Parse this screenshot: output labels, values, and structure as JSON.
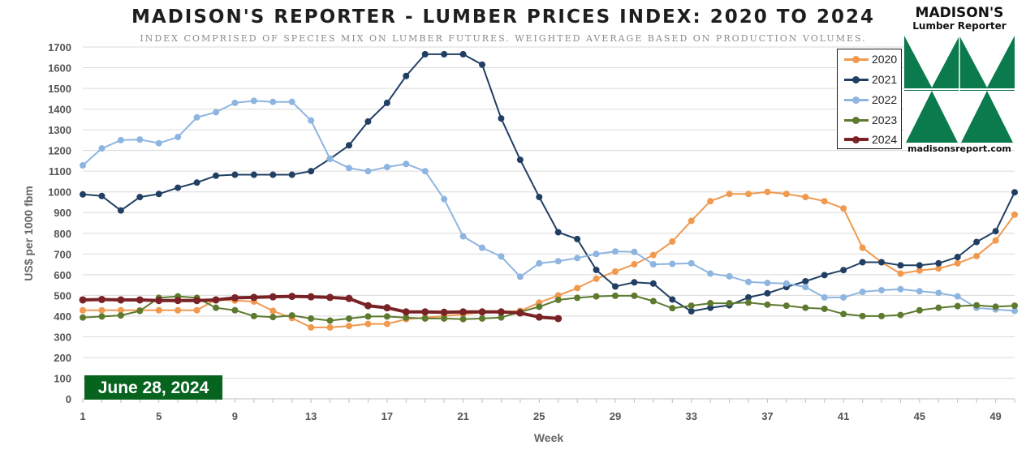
{
  "title": "MADISON'S REPORTER - LUMBER PRICES INDEX: 2020 TO 2024",
  "subtitle": "INDEX COMPRISED OF SPECIES MIX ON LUMBER FUTURES. WEIGHTED AVERAGE BASED ON PRODUCTION VOLUMES.",
  "logo": {
    "name": "MADISON'S",
    "subtitle": "Lumber Reporter",
    "url": "madisonsreport.com",
    "color": "#0b7a4c"
  },
  "date_badge": "June 28, 2024",
  "chart_data": {
    "type": "line",
    "title": "MADISON'S REPORTER - LUMBER PRICES INDEX: 2020 TO 2024",
    "xlabel": "Week",
    "ylabel": "US$ per 1000 fbm",
    "xlim": [
      1,
      50
    ],
    "ylim": [
      0,
      1700
    ],
    "x_ticks": [
      1,
      5,
      9,
      13,
      17,
      21,
      25,
      29,
      33,
      37,
      41,
      45,
      49
    ],
    "y_ticks": [
      0,
      100,
      200,
      300,
      400,
      500,
      600,
      700,
      800,
      900,
      1000,
      1100,
      1200,
      1300,
      1400,
      1500,
      1600,
      1700
    ],
    "grid": "horizontal",
    "legend_position": "top-right",
    "series": [
      {
        "name": "2020",
        "color": "#f0994f",
        "width": 2,
        "values": [
          428,
          428,
          428,
          428,
          428,
          428,
          428,
          480,
          475,
          470,
          425,
          390,
          345,
          345,
          352,
          362,
          362,
          385,
          392,
          400,
          408,
          418,
          420,
          425,
          465,
          500,
          535,
          580,
          615,
          650,
          695,
          760,
          860,
          955,
          990,
          990,
          1000,
          990,
          975,
          955,
          920,
          730,
          660,
          605,
          620,
          630,
          655,
          690,
          765,
          890
        ]
      },
      {
        "name": "2021",
        "color": "#203f63",
        "width": 2,
        "values": [
          988,
          980,
          910,
          975,
          990,
          1020,
          1045,
          1078,
          1083,
          1083,
          1083,
          1083,
          1100,
          1160,
          1225,
          1340,
          1430,
          1560,
          1665,
          1665,
          1665,
          1615,
          1355,
          1155,
          975,
          805,
          772,
          623,
          543,
          563,
          557,
          480,
          423,
          440,
          452,
          490,
          510,
          540,
          568,
          598,
          622,
          660,
          660,
          645,
          645,
          655,
          685,
          758,
          810,
          998
        ]
      },
      {
        "name": "2022",
        "color": "#8eb5e0",
        "width": 2,
        "values": [
          1128,
          1210,
          1250,
          1253,
          1235,
          1265,
          1360,
          1385,
          1430,
          1440,
          1435,
          1435,
          1345,
          1160,
          1115,
          1100,
          1120,
          1135,
          1100,
          965,
          785,
          730,
          688,
          590,
          655,
          665,
          680,
          700,
          712,
          710,
          650,
          652,
          655,
          605,
          592,
          565,
          560,
          557,
          540,
          490,
          490,
          517,
          525,
          530,
          520,
          512,
          495,
          440,
          432,
          425
        ]
      },
      {
        "name": "2023",
        "color": "#5d7a2e",
        "width": 2,
        "values": [
          393,
          398,
          403,
          425,
          488,
          495,
          488,
          440,
          428,
          400,
          395,
          403,
          388,
          378,
          388,
          398,
          398,
          392,
          388,
          388,
          385,
          388,
          393,
          420,
          445,
          478,
          488,
          495,
          498,
          498,
          472,
          438,
          450,
          462,
          462,
          465,
          455,
          450,
          440,
          435,
          410,
          400,
          400,
          405,
          428,
          440,
          448,
          452,
          445,
          450
        ]
      },
      {
        "name": "2024",
        "color": "#7a2326",
        "width": 4,
        "values": [
          478,
          480,
          478,
          478,
          475,
          475,
          475,
          478,
          488,
          490,
          493,
          495,
          493,
          490,
          485,
          450,
          440,
          420,
          420,
          418,
          420,
          420,
          420,
          415,
          395,
          388
        ]
      }
    ]
  }
}
